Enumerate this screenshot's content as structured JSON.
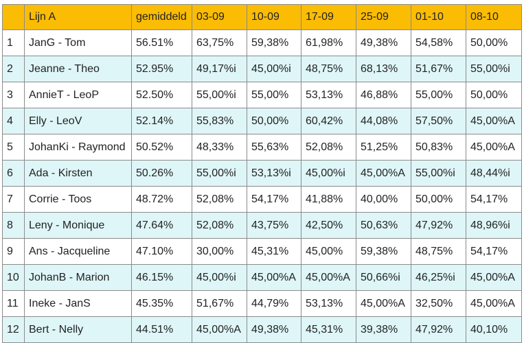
{
  "colors": {
    "header_bg": "#fbbc04",
    "alt_row_bg": "#dff6f8"
  },
  "table": {
    "headers": [
      "",
      "Lijn A",
      "gemiddeld",
      "03-09",
      "10-09",
      "17-09",
      "25-09",
      "01-10",
      "08-10"
    ],
    "rows": [
      [
        "1",
        "JanG - Tom",
        "56.51%",
        "63,75%",
        "59,38%",
        "61,98%",
        "49,38%",
        "54,58%",
        "50,00%"
      ],
      [
        "2",
        "Jeanne - Theo",
        "52.95%",
        "49,17%i",
        "45,00%i",
        "48,75%",
        "68,13%",
        "51,67%",
        "55,00%i"
      ],
      [
        "3",
        "AnnieT - LeoP",
        "52.50%",
        "55,00%i",
        "55,00%",
        "53,13%",
        "46,88%",
        "55,00%",
        "50,00%"
      ],
      [
        "4",
        "Elly - LeoV",
        "52.14%",
        "55,83%",
        "50,00%",
        "60,42%",
        "44,08%",
        "57,50%",
        "45,00%A"
      ],
      [
        "5",
        "JohanKi - Raymond",
        "50.52%",
        "48,33%",
        "55,63%",
        "52,08%",
        "51,25%",
        "50,83%",
        "45,00%A"
      ],
      [
        "6",
        "Ada - Kirsten",
        "50.26%",
        "55,00%i",
        "53,13%i",
        "45,00%i",
        "45,00%A",
        "55,00%i",
        "48,44%i"
      ],
      [
        "7",
        "Corrie - Toos",
        "48.72%",
        "52,08%",
        "54,17%",
        "41,88%",
        "40,00%",
        "50,00%",
        "54,17%"
      ],
      [
        "8",
        "Leny - Monique",
        "47.64%",
        "52,08%",
        "43,75%",
        "42,50%",
        "50,63%",
        "47,92%",
        "48,96%i"
      ],
      [
        "9",
        "Ans - Jacqueline",
        "47.10%",
        "30,00%",
        "45,31%",
        "45,00%",
        "59,38%",
        "48,75%",
        "54,17%"
      ],
      [
        "10",
        "JohanB - Marion",
        "46.15%",
        "45,00%i",
        "45,00%A",
        "45,00%A",
        "50,66%i",
        "46,25%i",
        "45,00%A"
      ],
      [
        "11",
        "Ineke - JanS",
        "45.35%",
        "51,67%",
        "44,79%",
        "53,13%",
        "45,00%A",
        "32,50%",
        "45,00%A"
      ],
      [
        "12",
        "Bert - Nelly",
        "44.51%",
        "45,00%A",
        "49,38%",
        "45,31%",
        "39,38%",
        "47,92%",
        "40,10%"
      ]
    ]
  }
}
